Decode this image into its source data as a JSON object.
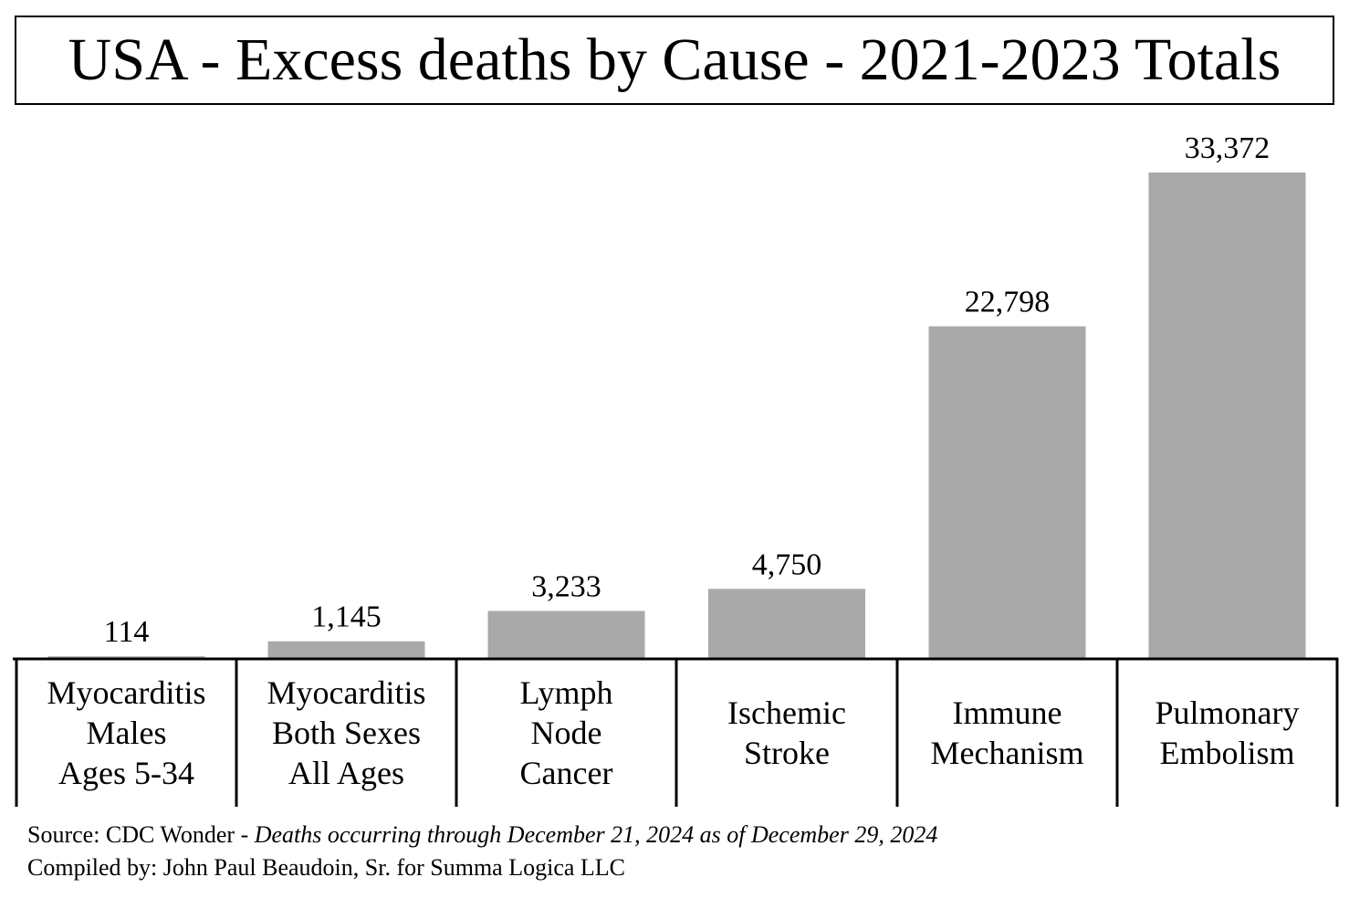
{
  "title": "USA - Excess deaths by Cause - 2021-2023 Totals",
  "chart_data": {
    "type": "bar",
    "title": "USA - Excess deaths by Cause - 2021-2023 Totals",
    "categories": [
      [
        "Myocarditis",
        "Males",
        "Ages 5-34"
      ],
      [
        "Myocarditis",
        "Both Sexes",
        "All Ages"
      ],
      [
        "Lymph",
        "Node",
        "Cancer"
      ],
      [
        "Ischemic",
        "Stroke"
      ],
      [
        "Immune",
        "Mechanism"
      ],
      [
        "Pulmonary",
        "Embolism"
      ]
    ],
    "values": [
      114,
      1145,
      3233,
      4750,
      22798,
      33372
    ],
    "value_labels": [
      "114",
      "1,145",
      "3,233",
      "4,750",
      "22,798",
      "33,372"
    ],
    "ylim": [
      0,
      35000
    ],
    "bar_color": "#a9a9a9",
    "grid": false,
    "legend": "none"
  },
  "footer": {
    "source_prefix": "Source:  CDC Wonder - ",
    "source_italic": "Deaths occurring through December 21, 2024 as of December 29, 2024",
    "compiled": "Compiled by:  John Paul Beaudoin, Sr. for Summa Logica LLC"
  }
}
